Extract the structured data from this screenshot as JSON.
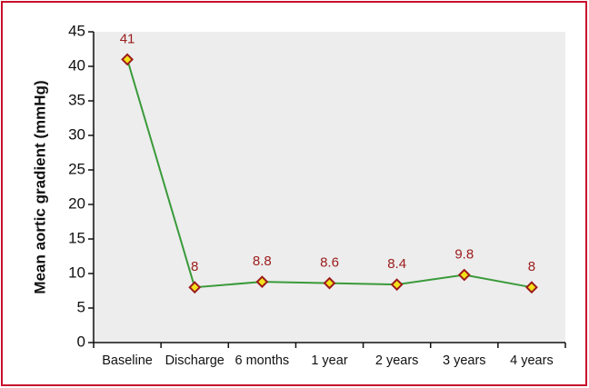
{
  "chart_data": {
    "type": "line",
    "y_label": "Mean aortic gradient (mmHg)",
    "categories": [
      "Baseline",
      "Discharge",
      "6 months",
      "1 year",
      "2 years",
      "3 years",
      "4 years"
    ],
    "series": [
      {
        "name": "Mean aortic gradient",
        "color": "#3a9a3a",
        "values": [
          41,
          8,
          8.8,
          8.6,
          8.4,
          9.8,
          8
        ]
      }
    ],
    "ylim": [
      0,
      45
    ],
    "yticks": [
      0,
      5,
      10,
      15,
      20,
      25,
      30,
      35,
      40,
      45
    ]
  }
}
